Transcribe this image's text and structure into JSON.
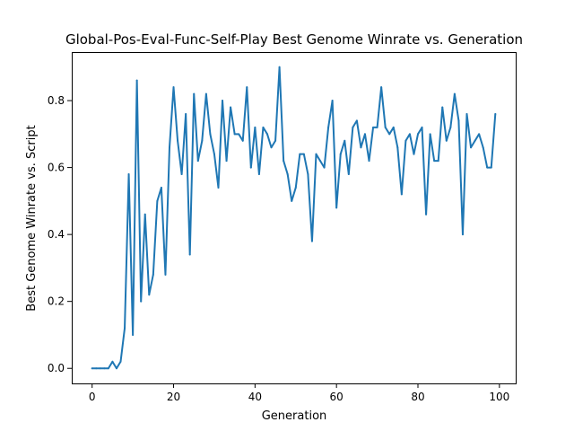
{
  "chart_data": {
    "type": "line",
    "title": "Global-Pos-Eval-Func-Self-Play Best Genome Winrate vs. Generation",
    "xlabel": "Generation",
    "ylabel": "Best Genome Winrate vs. Script",
    "xlim": [
      -5,
      104
    ],
    "ylim": [
      -0.045,
      0.945
    ],
    "xticks": [
      0,
      20,
      40,
      60,
      80,
      100
    ],
    "xtick_labels": [
      "0",
      "20",
      "40",
      "60",
      "80",
      "100"
    ],
    "yticks": [
      0.0,
      0.2,
      0.4,
      0.6,
      0.8
    ],
    "ytick_labels": [
      "0.0",
      "0.2",
      "0.4",
      "0.6",
      "0.8"
    ],
    "grid": false,
    "legend": "none",
    "series": [
      {
        "color": "#1f77b4",
        "x": [
          0,
          1,
          2,
          3,
          4,
          5,
          6,
          7,
          8,
          9,
          10,
          11,
          12,
          13,
          14,
          15,
          16,
          17,
          18,
          19,
          20,
          21,
          22,
          23,
          24,
          25,
          26,
          27,
          28,
          29,
          30,
          31,
          32,
          33,
          34,
          35,
          36,
          37,
          38,
          39,
          40,
          41,
          42,
          43,
          44,
          45,
          46,
          47,
          48,
          49,
          50,
          51,
          52,
          53,
          54,
          55,
          56,
          57,
          58,
          59,
          60,
          61,
          62,
          63,
          64,
          65,
          66,
          67,
          68,
          69,
          70,
          71,
          72,
          73,
          74,
          75,
          76,
          77,
          78,
          79,
          80,
          81,
          82,
          83,
          84,
          85,
          86,
          87,
          88,
          89,
          90,
          91,
          92,
          93,
          94,
          95,
          96,
          97,
          98,
          99
        ],
        "values": [
          0.0,
          0.0,
          0.0,
          0.0,
          0.0,
          0.02,
          0.0,
          0.02,
          0.12,
          0.58,
          0.1,
          0.86,
          0.2,
          0.46,
          0.22,
          0.28,
          0.5,
          0.54,
          0.28,
          0.66,
          0.84,
          0.68,
          0.58,
          0.76,
          0.34,
          0.82,
          0.62,
          0.68,
          0.82,
          0.7,
          0.64,
          0.54,
          0.8,
          0.62,
          0.78,
          0.7,
          0.7,
          0.68,
          0.84,
          0.6,
          0.72,
          0.58,
          0.72,
          0.7,
          0.66,
          0.68,
          0.9,
          0.62,
          0.58,
          0.5,
          0.54,
          0.64,
          0.64,
          0.58,
          0.38,
          0.64,
          0.62,
          0.6,
          0.72,
          0.8,
          0.48,
          0.64,
          0.68,
          0.58,
          0.72,
          0.74,
          0.66,
          0.7,
          0.62,
          0.72,
          0.72,
          0.84,
          0.72,
          0.7,
          0.72,
          0.66,
          0.52,
          0.68,
          0.7,
          0.64,
          0.7,
          0.72,
          0.46,
          0.7,
          0.62,
          0.62,
          0.78,
          0.68,
          0.72,
          0.82,
          0.74,
          0.4,
          0.76,
          0.66,
          0.68,
          0.7,
          0.66,
          0.6,
          0.6,
          0.76
        ]
      }
    ]
  }
}
